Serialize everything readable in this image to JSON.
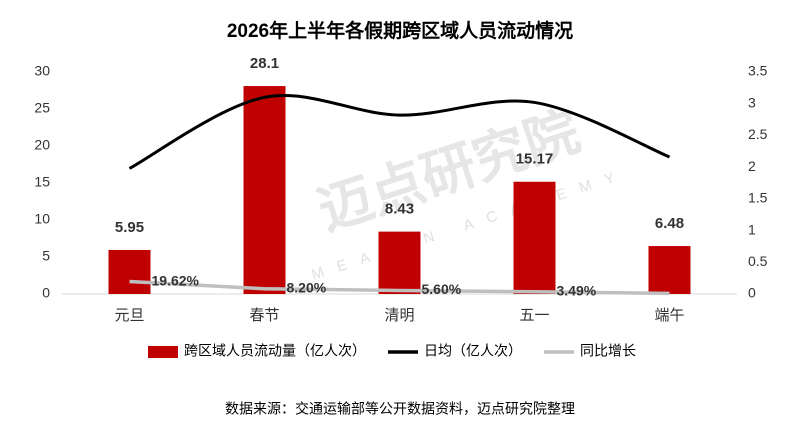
{
  "chart_data": {
    "type": "bar_line",
    "title": "2026年上半年各假期跨区域人员流动情况",
    "categories": [
      "元旦",
      "春节",
      "清明",
      "五一",
      "端午"
    ],
    "series": [
      {
        "name": "跨区域人员流动量（亿人次）",
        "type": "bar",
        "color": "#c00000",
        "values": [
          5.95,
          28.1,
          8.43,
          15.17,
          6.48
        ]
      },
      {
        "name": "日均（亿人次）",
        "type": "line",
        "smooth": true,
        "axis": "y2",
        "color": "#000000",
        "values": [
          1.98,
          3.1,
          2.82,
          3.02,
          2.16
        ]
      },
      {
        "name": "同比增长",
        "type": "line",
        "axis": "y2",
        "color": "#bfbfbf",
        "values": [
          0.1962,
          0.082,
          0.056,
          0.0349,
          0.01
        ],
        "value_labels": [
          "19.62%",
          "8.20%",
          "5.60%",
          "3.49%",
          null
        ]
      }
    ],
    "ylim": [
      0,
      30
    ],
    "yticks": [
      0,
      5,
      10,
      15,
      20,
      25,
      30
    ],
    "y2lim": [
      0,
      3.5
    ],
    "y2ticks": [
      0,
      0.5,
      1,
      1.5,
      2,
      2.5,
      3,
      3.5
    ],
    "watermark": "迈点研究院",
    "watermark_sub": "MEADIN ACADEMY",
    "source": "数据来源：交通运输部等公开数据资料，迈点研究院整理"
  }
}
